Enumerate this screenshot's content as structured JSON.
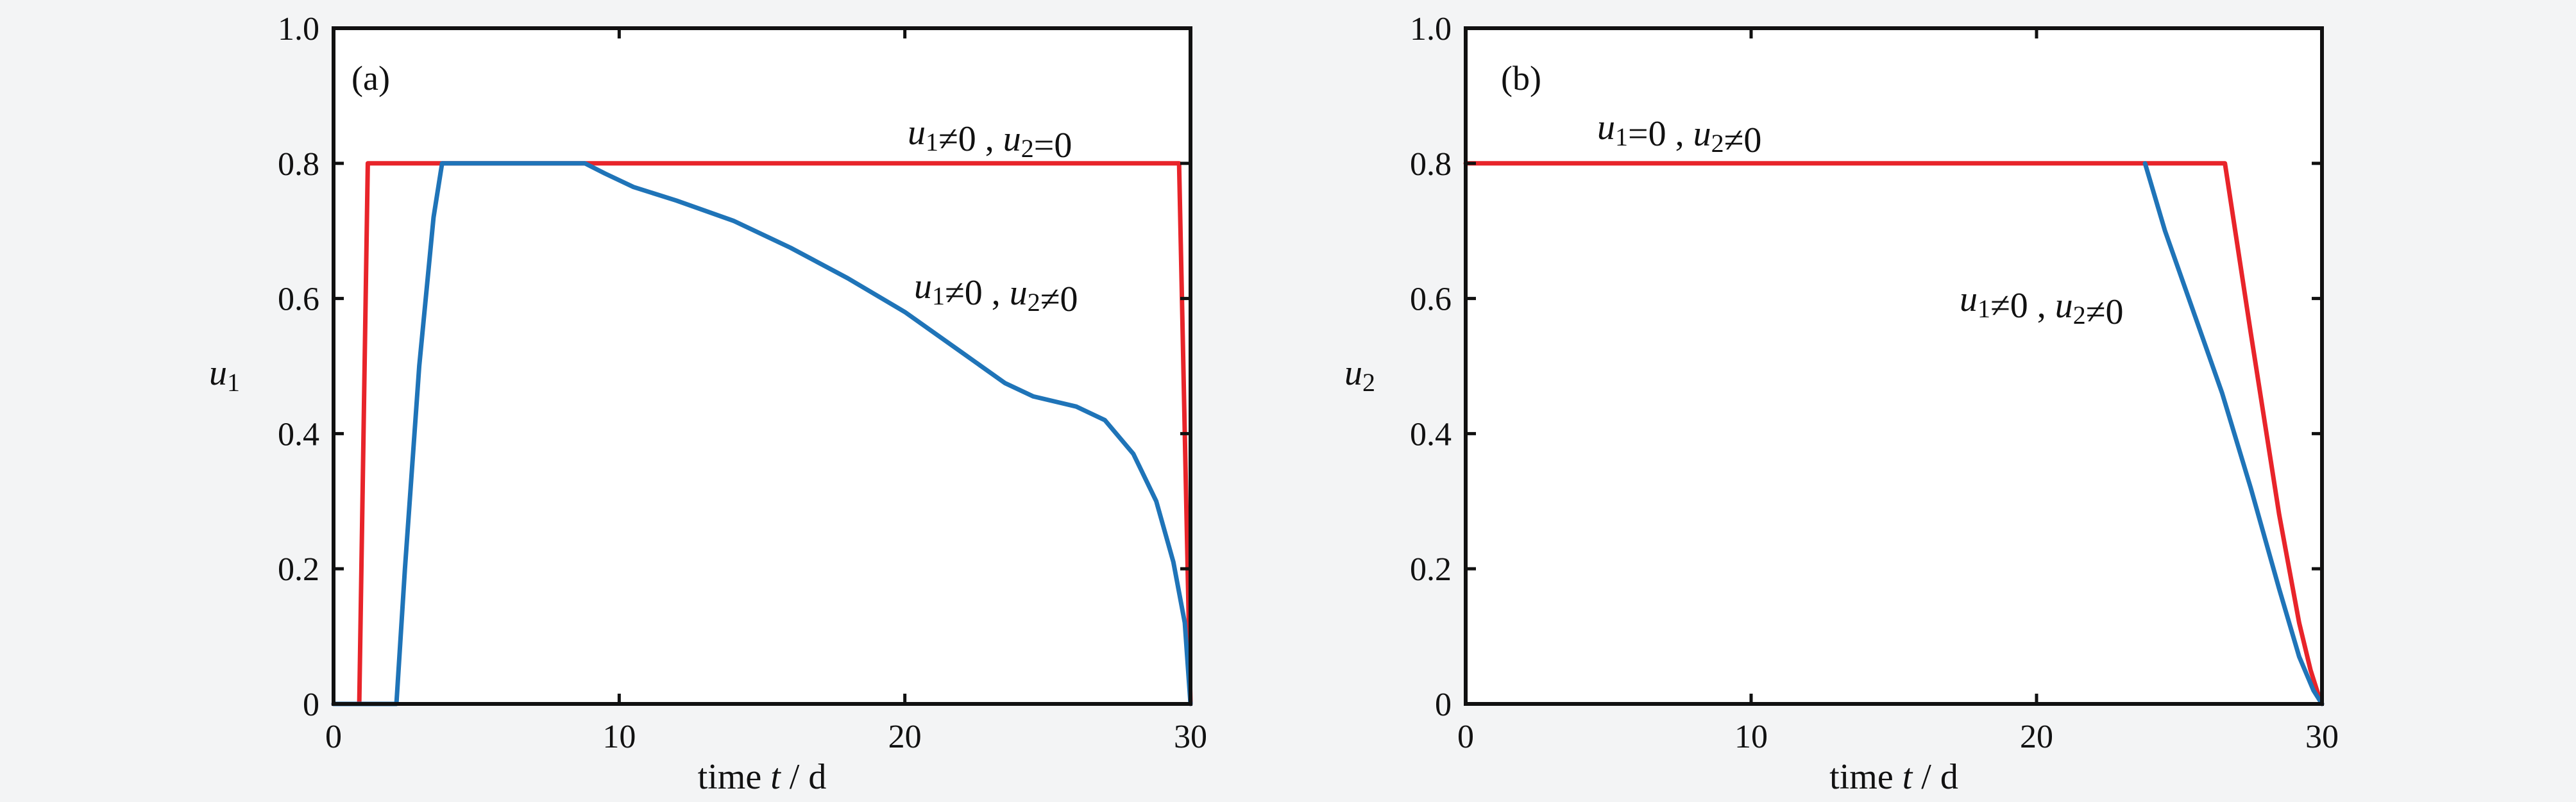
{
  "chart_data": [
    {
      "type": "line",
      "panel_label": "(a)",
      "xlabel": "time t / d",
      "ylabel": "u1",
      "xlim": [
        0,
        30
      ],
      "ylim": [
        0,
        1.0
      ],
      "xticks": [
        0,
        10,
        20,
        30
      ],
      "xtick_labels": [
        "0",
        "10",
        "20",
        "30"
      ],
      "yticks": [
        0,
        0.2,
        0.4,
        0.6,
        0.8,
        1.0
      ],
      "ytick_labels": [
        "0",
        "0.2",
        "0.4",
        "0.6",
        "0.8",
        "1.0"
      ],
      "grid": false,
      "annotations": [
        {
          "text": "u1≠0 , u2=0",
          "series": 0
        },
        {
          "text": "u1≠0 , u2≠0",
          "series": 1
        }
      ],
      "series": [
        {
          "color": "#e8242a",
          "x": [
            0,
            0.9,
            1.2,
            29.6,
            30.0
          ],
          "y": [
            0,
            0,
            0.8,
            0.8,
            0
          ]
        },
        {
          "color": "#1f74b8",
          "x": [
            0,
            2.2,
            2.5,
            3.0,
            3.5,
            3.8,
            8.8,
            9.5,
            10.5,
            12,
            14,
            16,
            18,
            20,
            22,
            23.5,
            24.5,
            26,
            27,
            28,
            28.8,
            29.4,
            29.8,
            30.0
          ],
          "y": [
            0,
            0,
            0.2,
            0.5,
            0.72,
            0.8,
            0.8,
            0.785,
            0.765,
            0.745,
            0.715,
            0.675,
            0.63,
            0.58,
            0.52,
            0.475,
            0.455,
            0.44,
            0.42,
            0.37,
            0.3,
            0.21,
            0.12,
            0.0
          ]
        }
      ]
    },
    {
      "type": "line",
      "panel_label": "(b)",
      "xlabel": "time t / d",
      "ylabel": "u2",
      "xlim": [
        0,
        30
      ],
      "ylim": [
        0,
        1.0
      ],
      "xticks": [
        0,
        10,
        20,
        30
      ],
      "xtick_labels": [
        "0",
        "10",
        "20",
        "30"
      ],
      "yticks": [
        0,
        0.2,
        0.4,
        0.6,
        0.8,
        1.0
      ],
      "ytick_labels": [
        "0",
        "0.2",
        "0.4",
        "0.6",
        "0.8",
        "1.0"
      ],
      "grid": false,
      "annotations": [
        {
          "text": "u1=0 , u2≠0",
          "series": 0
        },
        {
          "text": "u1≠0 , u2≠0",
          "series": 1
        }
      ],
      "series": [
        {
          "color": "#e8242a",
          "x": [
            0,
            26.6,
            27.5,
            28.5,
            29.2,
            29.6,
            29.9,
            30.0
          ],
          "y": [
            0.8,
            0.8,
            0.55,
            0.28,
            0.12,
            0.05,
            0.01,
            0.0
          ]
        },
        {
          "color": "#1f74b8",
          "x": [
            23.8,
            24.5,
            25.5,
            26.5,
            27.5,
            28.5,
            29.2,
            29.7,
            30.0
          ],
          "y": [
            0.8,
            0.7,
            0.58,
            0.46,
            0.32,
            0.17,
            0.07,
            0.02,
            0.0
          ]
        }
      ]
    }
  ]
}
